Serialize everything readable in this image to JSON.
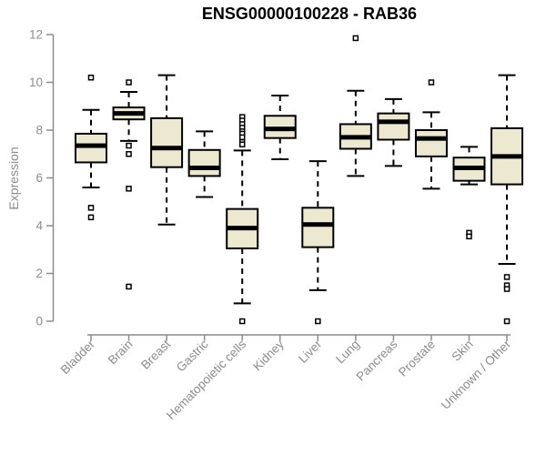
{
  "chart_data": {
    "type": "boxplot",
    "title": "ENSG00000100228 - RAB36",
    "ylabel": "Expression",
    "xlabel": "",
    "ylim": [
      0,
      12
    ],
    "yticks": [
      0,
      2,
      4,
      6,
      8,
      10,
      12
    ],
    "grid": false,
    "legend": null,
    "categories": [
      "Bladder",
      "Brain",
      "Breast",
      "Gastric",
      "Hematopoietic cells",
      "Kidney",
      "Liver",
      "Lung",
      "Pancreas",
      "Prostate",
      "Skin",
      "Unknown / Other"
    ],
    "series": [
      {
        "name": "Bladder",
        "whisker_low": 5.6,
        "q1": 6.65,
        "median": 7.35,
        "q3": 7.85,
        "whisker_high": 8.85,
        "outliers": [
          10.2,
          4.75,
          4.35
        ]
      },
      {
        "name": "Brain",
        "whisker_low": 7.55,
        "q1": 8.45,
        "median": 8.7,
        "q3": 8.95,
        "whisker_high": 9.6,
        "outliers": [
          10.0,
          7.35,
          7.0,
          5.55,
          1.45
        ]
      },
      {
        "name": "Breast",
        "whisker_low": 4.05,
        "q1": 6.45,
        "median": 7.25,
        "q3": 8.5,
        "whisker_high": 10.3,
        "outliers": []
      },
      {
        "name": "Gastric",
        "whisker_low": 5.2,
        "q1": 6.08,
        "median": 6.42,
        "q3": 7.17,
        "whisker_high": 7.95,
        "outliers": []
      },
      {
        "name": "Hematopoietic cells",
        "whisker_low": 0.75,
        "q1": 3.05,
        "median": 3.9,
        "q3": 4.7,
        "whisker_high": 7.15,
        "outliers": [
          8.55,
          8.4,
          8.25,
          8.1,
          7.95,
          7.85,
          7.7,
          7.5,
          7.4,
          0.0
        ]
      },
      {
        "name": "Kidney",
        "whisker_low": 6.78,
        "q1": 7.67,
        "median": 8.05,
        "q3": 8.6,
        "whisker_high": 9.45,
        "outliers": []
      },
      {
        "name": "Liver",
        "whisker_low": 1.3,
        "q1": 3.1,
        "median": 4.05,
        "q3": 4.75,
        "whisker_high": 6.7,
        "outliers": [
          0.0
        ]
      },
      {
        "name": "Lung",
        "whisker_low": 6.08,
        "q1": 7.22,
        "median": 7.7,
        "q3": 8.25,
        "whisker_high": 9.65,
        "outliers": [
          11.85
        ]
      },
      {
        "name": "Pancreas",
        "whisker_low": 6.5,
        "q1": 7.6,
        "median": 8.35,
        "q3": 8.7,
        "whisker_high": 9.3,
        "outliers": []
      },
      {
        "name": "Prostate",
        "whisker_low": 5.55,
        "q1": 6.9,
        "median": 7.65,
        "q3": 8.0,
        "whisker_high": 8.75,
        "outliers": [
          10.0
        ]
      },
      {
        "name": "Skin",
        "whisker_low": 5.73,
        "q1": 5.88,
        "median": 6.42,
        "q3": 6.85,
        "whisker_high": 7.3,
        "outliers": [
          3.7,
          3.55
        ]
      },
      {
        "name": "Unknown / Other",
        "whisker_low": 2.4,
        "q1": 5.73,
        "median": 6.9,
        "q3": 8.08,
        "whisker_high": 10.3,
        "outliers": [
          1.85,
          1.5,
          1.35,
          0.0
        ]
      }
    ],
    "colors": {
      "box_fill": "#EDE8D0",
      "box_stroke": "#000000",
      "median": "#000000",
      "axis": "#8C8C8C",
      "tick_text": "#8C8C8C",
      "title_text": "#000000",
      "background": "#FFFFFF"
    }
  }
}
